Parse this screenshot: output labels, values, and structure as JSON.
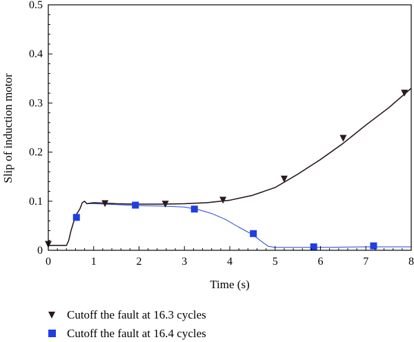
{
  "chart_data": {
    "type": "line",
    "xlabel": "Time (s)",
    "ylabel": "Slip of induction motor",
    "xlim": [
      0,
      8
    ],
    "ylim": [
      0,
      0.5
    ],
    "xticks": [
      "0",
      "1",
      "2",
      "3",
      "4",
      "5",
      "6",
      "7",
      "8"
    ],
    "yticks": [
      "0",
      "0.1",
      "0.2",
      "0.3",
      "0.4",
      "0.5"
    ],
    "grid": false,
    "legend_position": "bottom",
    "colors": {
      "series_1": "#2a1a20",
      "series_2": "#1f3fe0"
    },
    "series": [
      {
        "name": "Cutoff the fault at 16.3 cycles",
        "marker": "triangle-down",
        "x": [
          0,
          0.4,
          0.45,
          0.5,
          0.6,
          0.7,
          0.75,
          0.8,
          0.85,
          1.0,
          1.5,
          2.0,
          2.5,
          3.0,
          3.5,
          4.0,
          4.5,
          5.0,
          5.5,
          6.0,
          6.5,
          7.0,
          7.5,
          8.0
        ],
        "y": [
          0.01,
          0.01,
          0.02,
          0.04,
          0.07,
          0.085,
          0.097,
          0.1,
          0.095,
          0.097,
          0.095,
          0.094,
          0.094,
          0.095,
          0.097,
          0.102,
          0.112,
          0.128,
          0.155,
          0.185,
          0.218,
          0.255,
          0.29,
          0.33
        ],
        "marker_points": {
          "x": [
            0,
            1.25,
            2.58,
            3.85,
            5.2,
            6.5,
            7.85
          ],
          "y": [
            0.012,
            0.095,
            0.094,
            0.102,
            0.145,
            0.228,
            0.32
          ]
        }
      },
      {
        "name": "Cutoff the fault at 16.4 cycles",
        "marker": "square",
        "x": [
          0,
          0.4,
          0.45,
          0.5,
          0.6,
          0.7,
          0.75,
          0.8,
          0.85,
          1.0,
          1.5,
          2.0,
          2.5,
          3.0,
          3.3,
          3.6,
          3.9,
          4.2,
          4.5,
          4.7,
          4.85,
          5.0,
          6.0,
          7.0,
          8.0
        ],
        "y": [
          0.01,
          0.01,
          0.02,
          0.04,
          0.07,
          0.085,
          0.097,
          0.1,
          0.095,
          0.095,
          0.093,
          0.091,
          0.09,
          0.088,
          0.083,
          0.075,
          0.063,
          0.047,
          0.032,
          0.018,
          0.008,
          0.006,
          0.006,
          0.007,
          0.007
        ],
        "marker_points": {
          "x": [
            0.62,
            1.92,
            3.22,
            4.52,
            5.85,
            7.17
          ],
          "y": [
            0.067,
            0.092,
            0.084,
            0.034,
            0.007,
            0.009
          ]
        }
      }
    ]
  }
}
